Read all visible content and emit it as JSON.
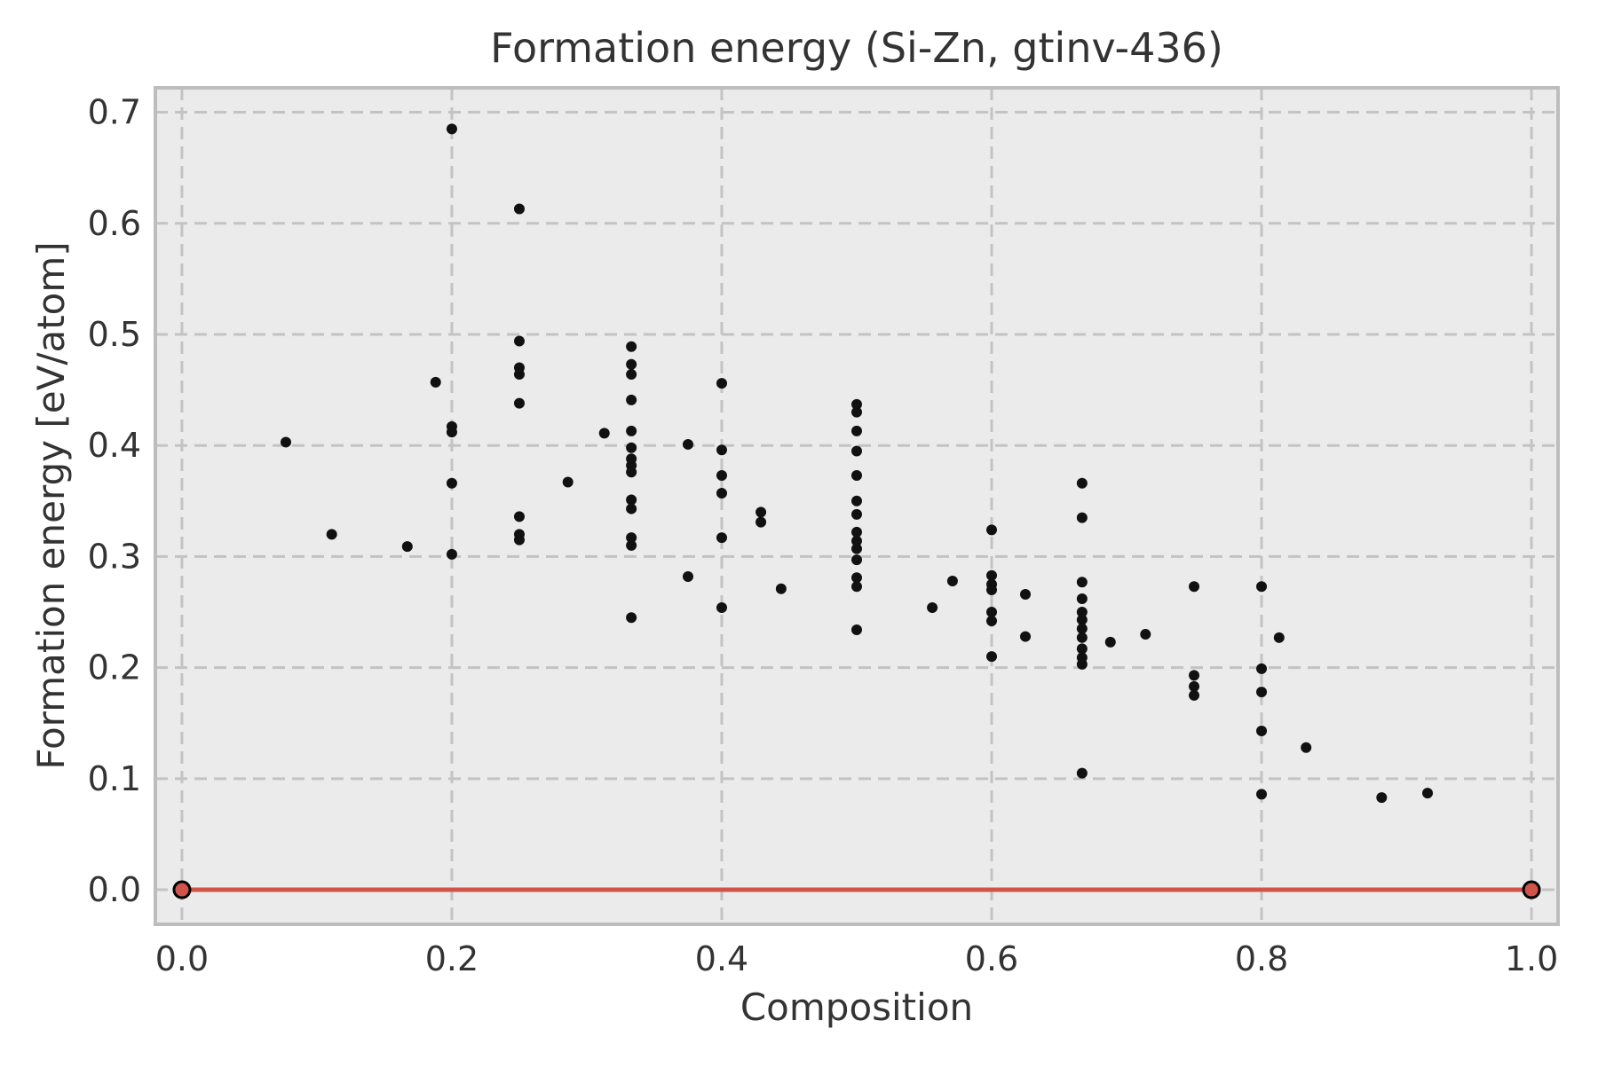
{
  "chart_data": {
    "type": "scatter",
    "title": "Formation energy (Si-Zn, gtinv-436)",
    "xlabel": "Composition",
    "ylabel": "Formation energy [eV/atom]",
    "xlim": [
      -0.0197,
      1.0197
    ],
    "ylim": [
      -0.0311,
      0.722
    ],
    "x_ticks": [
      0.0,
      0.2,
      0.4,
      0.6,
      0.8,
      1.0
    ],
    "y_ticks": [
      0.0,
      0.1,
      0.2,
      0.3,
      0.4,
      0.5,
      0.6,
      0.7
    ],
    "grid": "dashed",
    "legend": "none",
    "colors": {
      "plot_bg": "#ebebeb",
      "grid": "#c3c3c3",
      "spine": "#bdbdbd",
      "text": "#333333",
      "scatter_points": "#111111",
      "hull_line": "#d0544a",
      "hull_marker_fill": "#d0544a",
      "hull_marker_edge": "#000000"
    },
    "series": [
      {
        "name": "candidate-structures",
        "marker": "dot",
        "points": [
          [
            0.077,
            0.403
          ],
          [
            0.111,
            0.32
          ],
          [
            0.167,
            0.309
          ],
          [
            0.188,
            0.457
          ],
          [
            0.2,
            0.685
          ],
          [
            0.2,
            0.417
          ],
          [
            0.2,
            0.412
          ],
          [
            0.2,
            0.366
          ],
          [
            0.2,
            0.302
          ],
          [
            0.25,
            0.613
          ],
          [
            0.25,
            0.494
          ],
          [
            0.25,
            0.47
          ],
          [
            0.25,
            0.464
          ],
          [
            0.25,
            0.438
          ],
          [
            0.25,
            0.336
          ],
          [
            0.25,
            0.32
          ],
          [
            0.25,
            0.315
          ],
          [
            0.286,
            0.367
          ],
          [
            0.313,
            0.411
          ],
          [
            0.333,
            0.489
          ],
          [
            0.333,
            0.473
          ],
          [
            0.333,
            0.464
          ],
          [
            0.333,
            0.441
          ],
          [
            0.333,
            0.413
          ],
          [
            0.333,
            0.398
          ],
          [
            0.333,
            0.388
          ],
          [
            0.333,
            0.382
          ],
          [
            0.333,
            0.376
          ],
          [
            0.333,
            0.351
          ],
          [
            0.333,
            0.343
          ],
          [
            0.333,
            0.317
          ],
          [
            0.333,
            0.31
          ],
          [
            0.333,
            0.245
          ],
          [
            0.375,
            0.401
          ],
          [
            0.375,
            0.282
          ],
          [
            0.4,
            0.456
          ],
          [
            0.4,
            0.396
          ],
          [
            0.4,
            0.373
          ],
          [
            0.4,
            0.357
          ],
          [
            0.4,
            0.317
          ],
          [
            0.4,
            0.254
          ],
          [
            0.429,
            0.34
          ],
          [
            0.429,
            0.331
          ],
          [
            0.444,
            0.271
          ],
          [
            0.5,
            0.437
          ],
          [
            0.5,
            0.43
          ],
          [
            0.5,
            0.413
          ],
          [
            0.5,
            0.395
          ],
          [
            0.5,
            0.373
          ],
          [
            0.5,
            0.35
          ],
          [
            0.5,
            0.338
          ],
          [
            0.5,
            0.322
          ],
          [
            0.5,
            0.314
          ],
          [
            0.5,
            0.307
          ],
          [
            0.5,
            0.297
          ],
          [
            0.5,
            0.281
          ],
          [
            0.5,
            0.273
          ],
          [
            0.5,
            0.234
          ],
          [
            0.556,
            0.254
          ],
          [
            0.571,
            0.278
          ],
          [
            0.6,
            0.324
          ],
          [
            0.6,
            0.283
          ],
          [
            0.6,
            0.275
          ],
          [
            0.6,
            0.27
          ],
          [
            0.6,
            0.25
          ],
          [
            0.6,
            0.242
          ],
          [
            0.6,
            0.21
          ],
          [
            0.625,
            0.266
          ],
          [
            0.625,
            0.228
          ],
          [
            0.667,
            0.366
          ],
          [
            0.667,
            0.335
          ],
          [
            0.667,
            0.277
          ],
          [
            0.667,
            0.262
          ],
          [
            0.667,
            0.25
          ],
          [
            0.667,
            0.243
          ],
          [
            0.667,
            0.235
          ],
          [
            0.667,
            0.227
          ],
          [
            0.667,
            0.217
          ],
          [
            0.667,
            0.209
          ],
          [
            0.667,
            0.203
          ],
          [
            0.667,
            0.105
          ],
          [
            0.688,
            0.223
          ],
          [
            0.714,
            0.23
          ],
          [
            0.75,
            0.273
          ],
          [
            0.75,
            0.193
          ],
          [
            0.75,
            0.183
          ],
          [
            0.75,
            0.175
          ],
          [
            0.8,
            0.273
          ],
          [
            0.8,
            0.199
          ],
          [
            0.8,
            0.178
          ],
          [
            0.8,
            0.143
          ],
          [
            0.8,
            0.086
          ],
          [
            0.813,
            0.227
          ],
          [
            0.833,
            0.128
          ],
          [
            0.889,
            0.083
          ],
          [
            0.923,
            0.087
          ]
        ]
      },
      {
        "name": "convex-hull",
        "marker": "outlined-circle",
        "line": true,
        "points": [
          [
            0.0,
            0.0
          ],
          [
            1.0,
            0.0
          ]
        ]
      }
    ]
  }
}
